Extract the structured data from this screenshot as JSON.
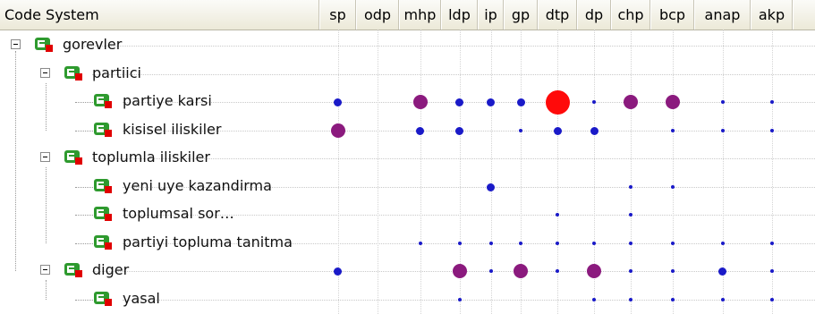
{
  "header": {
    "code_system_label": "Code System",
    "columns": [
      "sp",
      "odp",
      "mhp",
      "ldp",
      "ip",
      "gp",
      "dtp",
      "dp",
      "chp",
      "bcp",
      "anap",
      "akp"
    ]
  },
  "tree": [
    {
      "label": "gorevler",
      "level": 0,
      "expanded": true
    },
    {
      "label": "partiici",
      "level": 1,
      "expanded": true
    },
    {
      "label": "partiye karsi",
      "level": 2
    },
    {
      "label": "kisisel iliskiler",
      "level": 2
    },
    {
      "label": "toplumla iliskiler",
      "level": 1,
      "expanded": true
    },
    {
      "label": "yeni uye kazandirma",
      "level": 2
    },
    {
      "label": "toplumsal sor…",
      "level": 2
    },
    {
      "label": "partiyi topluma tanitma",
      "level": 2
    },
    {
      "label": "diger",
      "level": 1,
      "expanded": true
    },
    {
      "label": "yasal",
      "level": 2
    }
  ],
  "matrix": [
    [],
    [],
    [
      {
        "col": "sp",
        "size": "medium",
        "color": "blue"
      },
      {
        "col": "mhp",
        "size": "large",
        "color": "purple"
      },
      {
        "col": "ldp",
        "size": "medium",
        "color": "blue"
      },
      {
        "col": "ip",
        "size": "medium",
        "color": "blue"
      },
      {
        "col": "gp",
        "size": "medium",
        "color": "blue"
      },
      {
        "col": "dtp",
        "size": "xlarge",
        "color": "red"
      },
      {
        "col": "dp",
        "size": "tiny",
        "color": "blue"
      },
      {
        "col": "chp",
        "size": "large",
        "color": "purple"
      },
      {
        "col": "bcp",
        "size": "large",
        "color": "purple"
      },
      {
        "col": "anap",
        "size": "tiny",
        "color": "blue"
      },
      {
        "col": "akp",
        "size": "tiny",
        "color": "blue"
      }
    ],
    [
      {
        "col": "sp",
        "size": "large",
        "color": "purple"
      },
      {
        "col": "mhp",
        "size": "medium",
        "color": "blue"
      },
      {
        "col": "ldp",
        "size": "medium",
        "color": "blue"
      },
      {
        "col": "gp",
        "size": "tiny",
        "color": "blue"
      },
      {
        "col": "dtp",
        "size": "medium",
        "color": "blue"
      },
      {
        "col": "dp",
        "size": "medium",
        "color": "blue"
      },
      {
        "col": "bcp",
        "size": "tiny",
        "color": "blue"
      },
      {
        "col": "anap",
        "size": "tiny",
        "color": "blue"
      },
      {
        "col": "akp",
        "size": "tiny",
        "color": "blue"
      }
    ],
    [],
    [
      {
        "col": "ip",
        "size": "medium",
        "color": "blue"
      },
      {
        "col": "chp",
        "size": "tiny",
        "color": "blue"
      },
      {
        "col": "bcp",
        "size": "tiny",
        "color": "blue"
      }
    ],
    [
      {
        "col": "dtp",
        "size": "tiny",
        "color": "blue"
      },
      {
        "col": "chp",
        "size": "tiny",
        "color": "blue"
      }
    ],
    [
      {
        "col": "mhp",
        "size": "tiny",
        "color": "blue"
      },
      {
        "col": "ldp",
        "size": "tiny",
        "color": "blue"
      },
      {
        "col": "ip",
        "size": "tiny",
        "color": "blue"
      },
      {
        "col": "gp",
        "size": "tiny",
        "color": "blue"
      },
      {
        "col": "dtp",
        "size": "tiny",
        "color": "blue"
      },
      {
        "col": "dp",
        "size": "tiny",
        "color": "blue"
      },
      {
        "col": "chp",
        "size": "tiny",
        "color": "blue"
      },
      {
        "col": "bcp",
        "size": "tiny",
        "color": "blue"
      },
      {
        "col": "anap",
        "size": "tiny",
        "color": "blue"
      },
      {
        "col": "akp",
        "size": "tiny",
        "color": "blue"
      }
    ],
    [
      {
        "col": "sp",
        "size": "medium",
        "color": "blue"
      },
      {
        "col": "ldp",
        "size": "large",
        "color": "purple"
      },
      {
        "col": "ip",
        "size": "tiny",
        "color": "blue"
      },
      {
        "col": "gp",
        "size": "large",
        "color": "purple"
      },
      {
        "col": "dtp",
        "size": "tiny",
        "color": "blue"
      },
      {
        "col": "dp",
        "size": "large",
        "color": "purple"
      },
      {
        "col": "chp",
        "size": "tiny",
        "color": "blue"
      },
      {
        "col": "bcp",
        "size": "tiny",
        "color": "blue"
      },
      {
        "col": "anap",
        "size": "medium",
        "color": "blue"
      },
      {
        "col": "akp",
        "size": "tiny",
        "color": "blue"
      }
    ],
    [
      {
        "col": "ldp",
        "size": "tiny",
        "color": "blue"
      },
      {
        "col": "dp",
        "size": "tiny",
        "color": "blue"
      },
      {
        "col": "chp",
        "size": "tiny",
        "color": "blue"
      },
      {
        "col": "bcp",
        "size": "tiny",
        "color": "blue"
      },
      {
        "col": "anap",
        "size": "tiny",
        "color": "blue"
      },
      {
        "col": "akp",
        "size": "tiny",
        "color": "blue"
      }
    ]
  ],
  "colors": {
    "blue": "#1a1ac8",
    "purple": "#8b1a7e",
    "red": "#ff0a0a",
    "icon_green": "#2e9a2e",
    "icon_red": "#e00000"
  },
  "icons": {
    "toggle": "minus-box-icon",
    "code": "code-icon"
  }
}
